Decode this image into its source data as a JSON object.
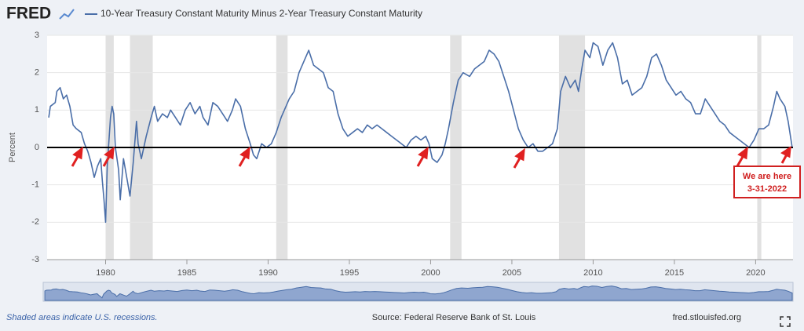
{
  "chart_data": {
    "type": "line",
    "logo": "FRED",
    "y_label": "Percent",
    "footnote": "Shaded areas indicate U.S. recessions.",
    "source": "Source: Federal Reserve Bank of St. Louis",
    "site": "fred.stlouisfed.org",
    "xlim": [
      1976.4,
      2022.3
    ],
    "xticks": [
      1980,
      1985,
      1990,
      1995,
      2000,
      2005,
      2010,
      2015,
      2020
    ],
    "ylim": [
      -3,
      3
    ],
    "yticks": [
      -3,
      -2,
      -1,
      0,
      1,
      2,
      3
    ],
    "grid": true,
    "recessions": [
      [
        1980.0,
        1980.5
      ],
      [
        1981.5,
        1982.9
      ],
      [
        1990.5,
        1991.2
      ],
      [
        2001.2,
        2001.9
      ],
      [
        2007.9,
        2009.5
      ],
      [
        2020.1,
        2020.35
      ]
    ],
    "annotations": [
      "We are here",
      "3-31-2022"
    ],
    "x": [
      1976.5,
      1976.6,
      1976.9,
      1977.0,
      1977.2,
      1977.4,
      1977.6,
      1977.8,
      1978.0,
      1978.2,
      1978.5,
      1978.7,
      1978.9,
      1979.1,
      1979.3,
      1979.5,
      1979.7,
      1979.8,
      1979.9,
      1980.0,
      1980.1,
      1980.3,
      1980.4,
      1980.5,
      1980.6,
      1980.8,
      1980.9,
      1981.1,
      1981.3,
      1981.5,
      1981.7,
      1981.9,
      1982.0,
      1982.2,
      1982.5,
      1982.8,
      1983.0,
      1983.2,
      1983.5,
      1983.8,
      1984.0,
      1984.3,
      1984.6,
      1984.9,
      1985.2,
      1985.5,
      1985.8,
      1986.0,
      1986.3,
      1986.6,
      1986.9,
      1987.2,
      1987.5,
      1987.8,
      1988.0,
      1988.3,
      1988.6,
      1988.9,
      1989.1,
      1989.3,
      1989.6,
      1989.9,
      1990.2,
      1990.5,
      1990.8,
      1991.0,
      1991.3,
      1991.6,
      1991.9,
      1992.2,
      1992.5,
      1992.8,
      1993.1,
      1993.4,
      1993.7,
      1994.0,
      1994.3,
      1994.6,
      1994.9,
      1995.2,
      1995.5,
      1995.8,
      1996.1,
      1996.4,
      1996.7,
      1997.0,
      1997.3,
      1997.6,
      1997.9,
      1998.2,
      1998.5,
      1998.8,
      1999.1,
      1999.4,
      1999.7,
      1999.9,
      2000.1,
      2000.4,
      2000.7,
      2000.9,
      2001.1,
      2001.4,
      2001.7,
      2002.0,
      2002.4,
      2002.7,
      2003.0,
      2003.3,
      2003.6,
      2003.9,
      2004.2,
      2004.5,
      2004.8,
      2005.1,
      2005.4,
      2005.7,
      2006.0,
      2006.3,
      2006.6,
      2006.9,
      2007.2,
      2007.5,
      2007.8,
      2008.0,
      2008.3,
      2008.6,
      2008.9,
      2009.1,
      2009.3,
      2009.5,
      2009.8,
      2010.0,
      2010.3,
      2010.6,
      2010.9,
      2011.2,
      2011.5,
      2011.8,
      2012.1,
      2012.4,
      2012.7,
      2013.0,
      2013.3,
      2013.6,
      2013.9,
      2014.2,
      2014.5,
      2014.8,
      2015.1,
      2015.4,
      2015.7,
      2016.0,
      2016.3,
      2016.6,
      2016.9,
      2017.2,
      2017.5,
      2017.8,
      2018.1,
      2018.4,
      2018.7,
      2019.0,
      2019.3,
      2019.6,
      2019.9,
      2020.2,
      2020.5,
      2020.8,
      2021.1,
      2021.3,
      2021.5,
      2021.8,
      2022.0,
      2022.25
    ],
    "series": [
      {
        "name": "10-Year Treasury Constant Maturity Minus 2-Year Treasury Constant Maturity",
        "color": "#4a6ea8",
        "values": [
          0.8,
          1.1,
          1.2,
          1.5,
          1.6,
          1.3,
          1.4,
          1.1,
          0.6,
          0.5,
          0.4,
          0.1,
          -0.1,
          -0.4,
          -0.8,
          -0.5,
          -0.3,
          -0.9,
          -1.4,
          -2.0,
          -0.5,
          0.8,
          1.1,
          0.9,
          0.0,
          -0.6,
          -1.4,
          -0.3,
          -0.8,
          -1.3,
          -0.4,
          0.7,
          0.1,
          -0.3,
          0.3,
          0.8,
          1.1,
          0.7,
          0.9,
          0.8,
          1.0,
          0.8,
          0.6,
          1.0,
          1.2,
          0.9,
          1.1,
          0.8,
          0.6,
          1.2,
          1.1,
          0.9,
          0.7,
          1.0,
          1.3,
          1.1,
          0.5,
          0.1,
          -0.2,
          -0.3,
          0.1,
          0.0,
          0.1,
          0.4,
          0.8,
          1.0,
          1.3,
          1.5,
          2.0,
          2.3,
          2.6,
          2.2,
          2.1,
          2.0,
          1.6,
          1.5,
          0.9,
          0.5,
          0.3,
          0.4,
          0.5,
          0.4,
          0.6,
          0.5,
          0.6,
          0.5,
          0.4,
          0.3,
          0.2,
          0.1,
          0.0,
          0.2,
          0.3,
          0.2,
          0.3,
          0.1,
          -0.3,
          -0.4,
          -0.2,
          0.1,
          0.5,
          1.2,
          1.8,
          2.0,
          1.9,
          2.1,
          2.2,
          2.3,
          2.6,
          2.5,
          2.3,
          1.9,
          1.5,
          1.0,
          0.5,
          0.2,
          0.0,
          0.1,
          -0.1,
          -0.1,
          0.0,
          0.1,
          0.5,
          1.5,
          1.9,
          1.6,
          1.8,
          1.5,
          2.1,
          2.6,
          2.4,
          2.8,
          2.7,
          2.2,
          2.6,
          2.8,
          2.4,
          1.7,
          1.8,
          1.4,
          1.5,
          1.6,
          1.9,
          2.4,
          2.5,
          2.2,
          1.8,
          1.6,
          1.4,
          1.5,
          1.3,
          1.2,
          0.9,
          0.9,
          1.3,
          1.1,
          0.9,
          0.7,
          0.6,
          0.4,
          0.3,
          0.2,
          0.1,
          0.0,
          0.2,
          0.5,
          0.5,
          0.6,
          1.1,
          1.5,
          1.3,
          1.1,
          0.7,
          0.0
        ]
      }
    ]
  }
}
